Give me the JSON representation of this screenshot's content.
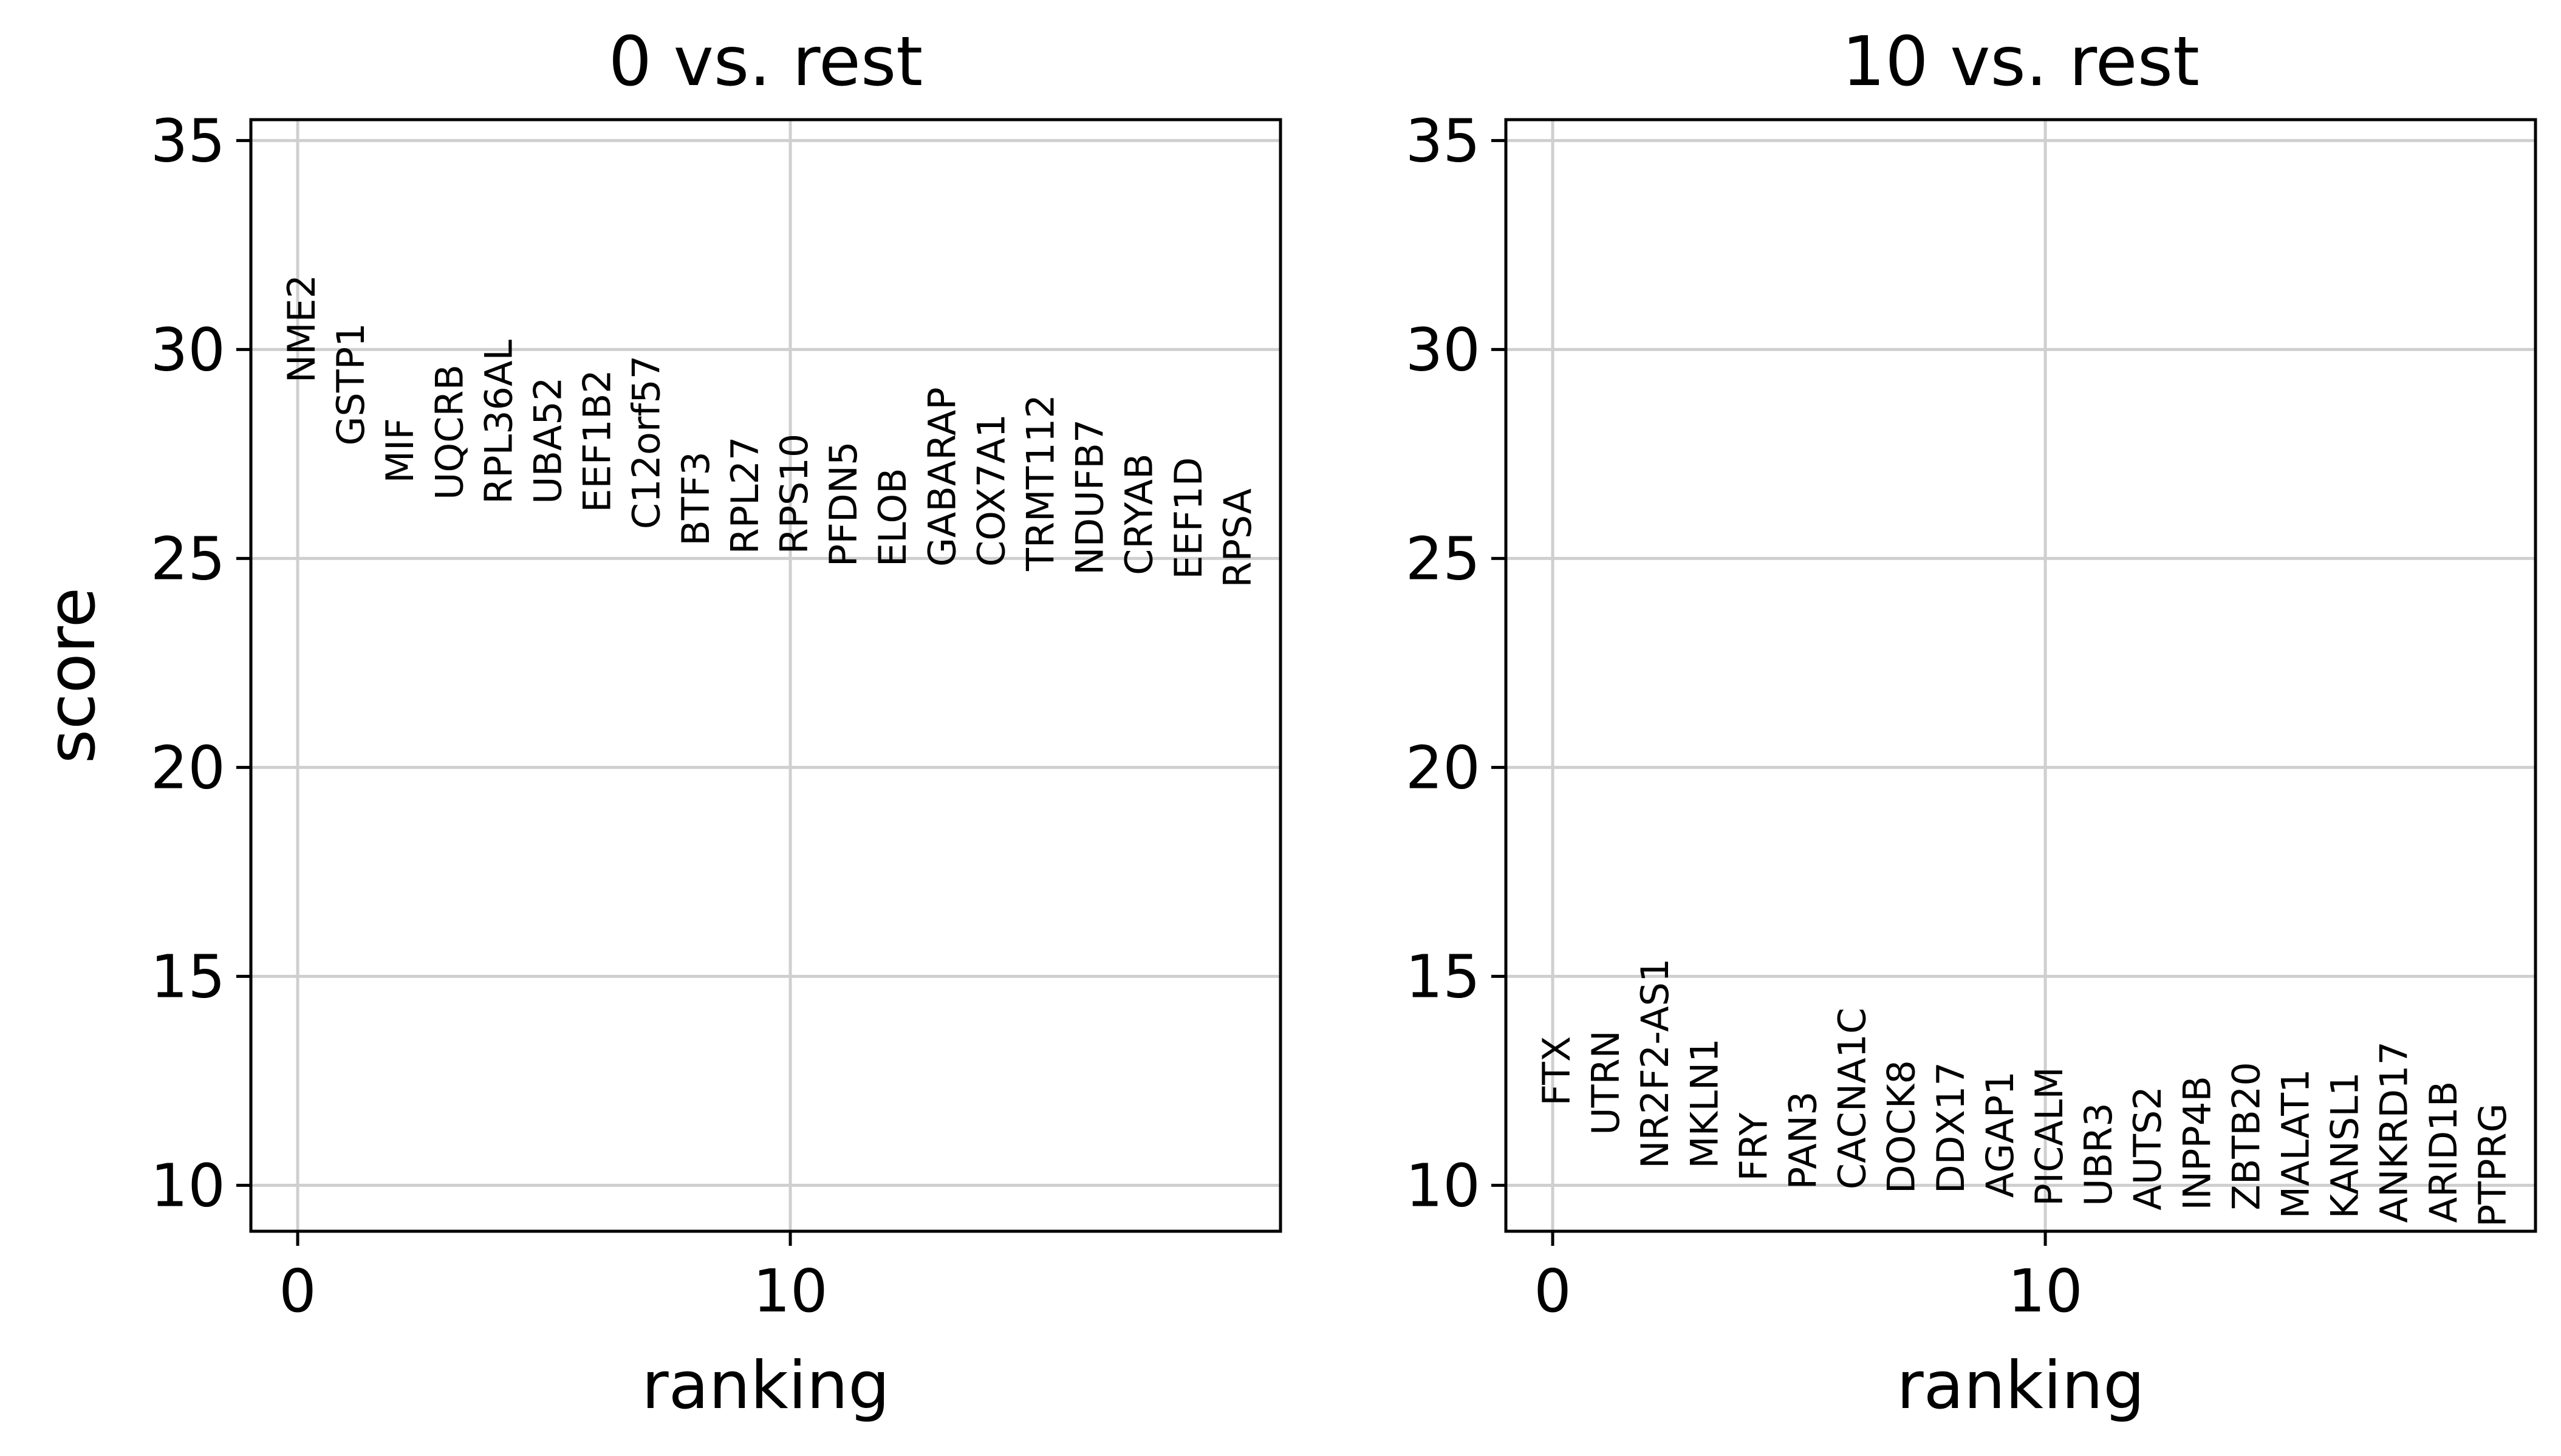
{
  "chart_data": [
    {
      "type": "scatter",
      "title": "0 vs. rest",
      "xlabel": "ranking",
      "ylabel": "score",
      "xlim": [
        -0.95,
        19.95
      ],
      "ylim": [
        8.9,
        35.5
      ],
      "xticks": [
        0,
        10
      ],
      "yticks": [
        10,
        15,
        20,
        25,
        30,
        35
      ],
      "grid": true,
      "genes": [
        "NME2",
        "GSTP1",
        "MIF",
        "UQCRB",
        "RPL36AL",
        "UBA52",
        "EEF1B2",
        "C12orf57",
        "BTF3",
        "RPL27",
        "RPS10",
        "PFDN5",
        "ELOB",
        "GABARAP",
        "COX7A1",
        "TRMT112",
        "NDUFB7",
        "CRYAB",
        "EEF1D",
        "RPSA"
      ],
      "scores": [
        29.2,
        27.7,
        26.8,
        26.4,
        26.3,
        26.3,
        26.1,
        25.7,
        25.3,
        25.1,
        25.1,
        24.8,
        24.8,
        24.8,
        24.8,
        24.7,
        24.6,
        24.6,
        24.5,
        24.3
      ]
    },
    {
      "type": "scatter",
      "title": "10 vs. rest",
      "xlabel": "ranking",
      "ylabel": "",
      "xlim": [
        -0.95,
        19.95
      ],
      "ylim": [
        8.9,
        35.5
      ],
      "xticks": [
        0,
        10
      ],
      "yticks": [
        10,
        15,
        20,
        25,
        30,
        35
      ],
      "grid": true,
      "genes": [
        "FTX",
        "UTRN",
        "NR2F2-AS1",
        "MKLN1",
        "FRY",
        "PAN3",
        "CACNA1C",
        "DOCK8",
        "DDX17",
        "AGAP1",
        "PICALM",
        "UBR3",
        "AUTS2",
        "INPP4B",
        "ZBTB20",
        "MALAT1",
        "KANSL1",
        "ANKRD17",
        "ARID1B",
        "PTPRG"
      ],
      "scores": [
        11.9,
        11.2,
        10.4,
        10.4,
        10.1,
        9.9,
        9.9,
        9.8,
        9.8,
        9.7,
        9.5,
        9.5,
        9.4,
        9.4,
        9.4,
        9.2,
        9.2,
        9.1,
        9.1,
        9.0
      ]
    }
  ]
}
